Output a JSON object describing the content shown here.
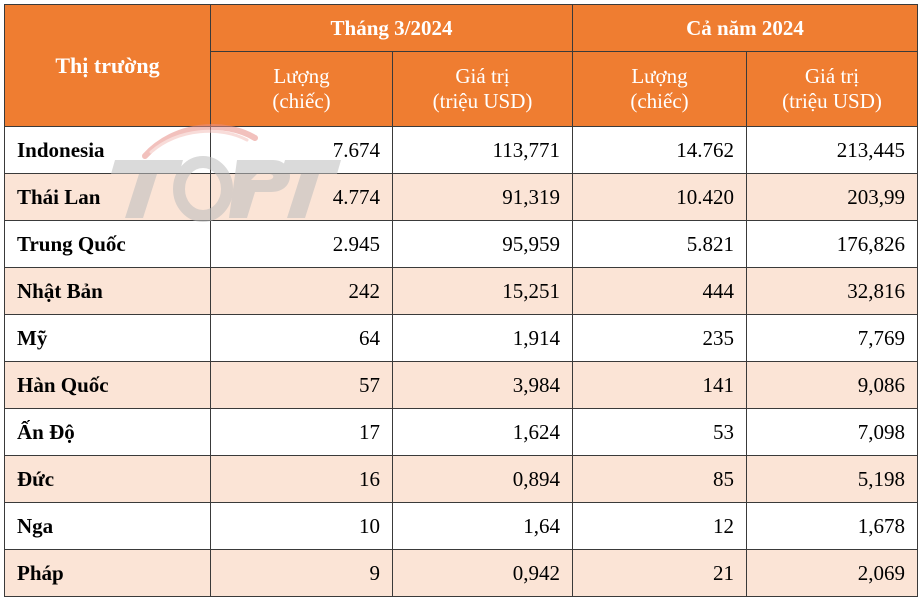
{
  "table": {
    "market_header": "Thị trường",
    "group_headers": [
      "Tháng 3/2024",
      "Cả năm 2024"
    ],
    "sub_headers": [
      {
        "line1": "Lượng",
        "line2": "(chiếc)"
      },
      {
        "line1": "Giá trị",
        "line2": "(triệu USD)"
      },
      {
        "line1": "Lượng",
        "line2": "(chiếc)"
      },
      {
        "line1": "Giá trị",
        "line2": "(triệu USD)"
      }
    ],
    "rows": [
      {
        "market": "Indonesia",
        "m3_qty": "7.674",
        "m3_val": "113,771",
        "y_qty": "14.762",
        "y_val": "213,445"
      },
      {
        "market": "Thái Lan",
        "m3_qty": "4.774",
        "m3_val": "91,319",
        "y_qty": "10.420",
        "y_val": "203,99"
      },
      {
        "market": "Trung Quốc",
        "m3_qty": "2.945",
        "m3_val": "95,959",
        "y_qty": "5.821",
        "y_val": "176,826"
      },
      {
        "market": "Nhật Bản",
        "m3_qty": "242",
        "m3_val": "15,251",
        "y_qty": "444",
        "y_val": "32,816"
      },
      {
        "market": "Mỹ",
        "m3_qty": "64",
        "m3_val": "1,914",
        "y_qty": "235",
        "y_val": "7,769"
      },
      {
        "market": "Hàn Quốc",
        "m3_qty": "57",
        "m3_val": "3,984",
        "y_qty": "141",
        "y_val": "9,086"
      },
      {
        "market": "Ấn Độ",
        "m3_qty": "17",
        "m3_val": "1,624",
        "y_qty": "53",
        "y_val": "7,098"
      },
      {
        "market": "Đức",
        "m3_qty": "16",
        "m3_val": "0,894",
        "y_qty": "85",
        "y_val": "5,198"
      },
      {
        "market": "Nga",
        "m3_qty": "10",
        "m3_val": "1,64",
        "y_qty": "12",
        "y_val": "1,678"
      },
      {
        "market": "Pháp",
        "m3_qty": "9",
        "m3_val": "0,942",
        "y_qty": "21",
        "y_val": "2,069"
      }
    ]
  },
  "watermark": {
    "text": "TOPT",
    "icon": "topt-logo-watermark"
  },
  "colors": {
    "header_bg": "#ef7d31",
    "stripe_bg": "#fbe4d6",
    "border": "#3a3a3a"
  }
}
